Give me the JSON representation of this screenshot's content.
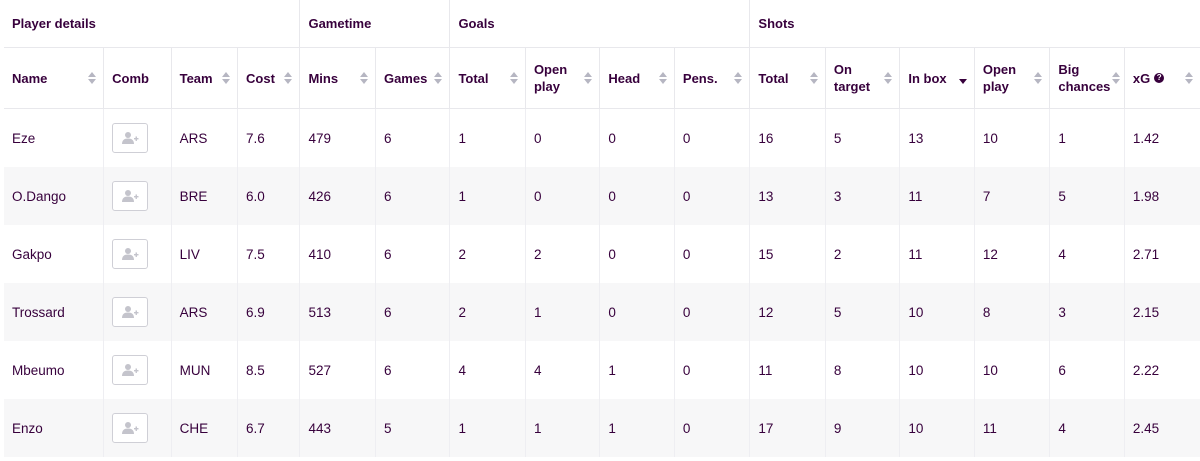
{
  "groups": [
    {
      "label": "Player details",
      "span": 4
    },
    {
      "label": "Gametime",
      "span": 2
    },
    {
      "label": "Goals",
      "span": 4
    },
    {
      "label": "Shots",
      "span": 6
    }
  ],
  "columns": [
    {
      "key": "name",
      "label": "Name",
      "sortable": true
    },
    {
      "key": "comb",
      "label": "Comb",
      "sortable": false
    },
    {
      "key": "team",
      "label": "Team",
      "sortable": true
    },
    {
      "key": "cost",
      "label": "Cost",
      "sortable": true
    },
    {
      "key": "mins",
      "label": "Mins",
      "sortable": true
    },
    {
      "key": "games",
      "label": "Games",
      "sortable": true
    },
    {
      "key": "goals_total",
      "label": "Total",
      "sortable": true
    },
    {
      "key": "goals_open",
      "label": "Open play",
      "sortable": true
    },
    {
      "key": "head",
      "label": "Head",
      "sortable": true
    },
    {
      "key": "pens",
      "label": "Pens.",
      "sortable": true
    },
    {
      "key": "shots_total",
      "label": "Total",
      "sortable": true
    },
    {
      "key": "on_target",
      "label": "On target",
      "sortable": true
    },
    {
      "key": "in_box",
      "label": "In box",
      "sortable": true,
      "sorted": "desc"
    },
    {
      "key": "shots_open",
      "label": "Open play",
      "sortable": true
    },
    {
      "key": "big_chances",
      "label": "Big chances",
      "sortable": true
    },
    {
      "key": "xg",
      "label": "xG",
      "sortable": true,
      "help": "?"
    }
  ],
  "rows": [
    {
      "name": "Eze",
      "team": "ARS",
      "cost": "7.6",
      "mins": "479",
      "games": "6",
      "goals_total": "1",
      "goals_open": "0",
      "head": "0",
      "pens": "0",
      "shots_total": "16",
      "on_target": "5",
      "in_box": "13",
      "shots_open": "10",
      "big_chances": "1",
      "xg": "1.42"
    },
    {
      "name": "O.Dango",
      "team": "BRE",
      "cost": "6.0",
      "mins": "426",
      "games": "6",
      "goals_total": "1",
      "goals_open": "0",
      "head": "0",
      "pens": "0",
      "shots_total": "13",
      "on_target": "3",
      "in_box": "11",
      "shots_open": "7",
      "big_chances": "5",
      "xg": "1.98"
    },
    {
      "name": "Gakpo",
      "team": "LIV",
      "cost": "7.5",
      "mins": "410",
      "games": "6",
      "goals_total": "2",
      "goals_open": "2",
      "head": "0",
      "pens": "0",
      "shots_total": "15",
      "on_target": "2",
      "in_box": "11",
      "shots_open": "12",
      "big_chances": "4",
      "xg": "2.71"
    },
    {
      "name": "Trossard",
      "team": "ARS",
      "cost": "6.9",
      "mins": "513",
      "games": "6",
      "goals_total": "2",
      "goals_open": "1",
      "head": "0",
      "pens": "0",
      "shots_total": "12",
      "on_target": "5",
      "in_box": "10",
      "shots_open": "8",
      "big_chances": "3",
      "xg": "2.15"
    },
    {
      "name": "Mbeumo",
      "team": "MUN",
      "cost": "8.5",
      "mins": "527",
      "games": "6",
      "goals_total": "4",
      "goals_open": "4",
      "head": "1",
      "pens": "0",
      "shots_total": "11",
      "on_target": "8",
      "in_box": "10",
      "shots_open": "10",
      "big_chances": "6",
      "xg": "2.22"
    },
    {
      "name": "Enzo",
      "team": "CHE",
      "cost": "6.7",
      "mins": "443",
      "games": "5",
      "goals_total": "1",
      "goals_open": "1",
      "head": "1",
      "pens": "0",
      "shots_total": "17",
      "on_target": "9",
      "in_box": "10",
      "shots_open": "11",
      "big_chances": "4",
      "xg": "2.45"
    }
  ],
  "colors": {
    "text": "#37003c",
    "row_alt": "#f7f7f8",
    "border": "#e8e8ec"
  }
}
